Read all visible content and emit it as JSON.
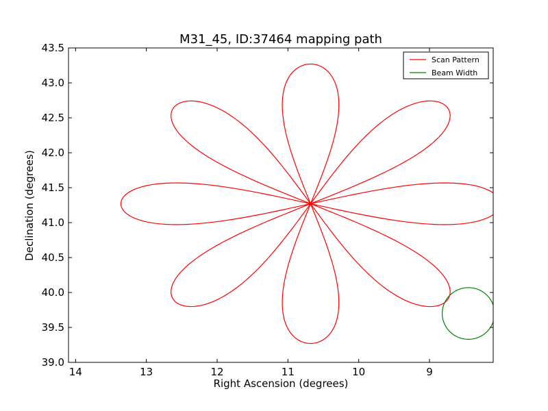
{
  "chart_data": {
    "type": "line",
    "title": "M31_45, ID:37464 mapping path",
    "xlabel": "Right Ascension (degrees)",
    "ylabel": "Declination (degrees)",
    "xlim": [
      14.1,
      8.1
    ],
    "ylim": [
      39.0,
      43.5
    ],
    "x_ticks": [
      14,
      13,
      12,
      11,
      10,
      9
    ],
    "x_tick_labels": [
      "14",
      "13",
      "12",
      "11",
      "10",
      "9"
    ],
    "y_ticks": [
      39.0,
      39.5,
      40.0,
      40.5,
      41.0,
      41.5,
      42.0,
      42.5,
      43.0,
      43.5
    ],
    "y_tick_labels": [
      "39.0",
      "39.5",
      "40.0",
      "40.5",
      "41.0",
      "41.5",
      "42.0",
      "42.5",
      "43.0",
      "43.5"
    ],
    "grid": false,
    "legend_position": "top-right",
    "series": [
      {
        "name": "Scan Pattern",
        "color": "#ff0000",
        "shape": "rose-8-petal",
        "center": [
          10.68,
          41.27
        ],
        "petal_reach_ra": 2.68,
        "petal_reach_dec": 2.0,
        "petal_half_width": 0.4
      },
      {
        "name": "Beam Width",
        "color": "#008000",
        "shape": "circle",
        "center": [
          8.45,
          39.7
        ],
        "radius_ra": 0.37,
        "radius_dec": 0.37
      }
    ]
  }
}
